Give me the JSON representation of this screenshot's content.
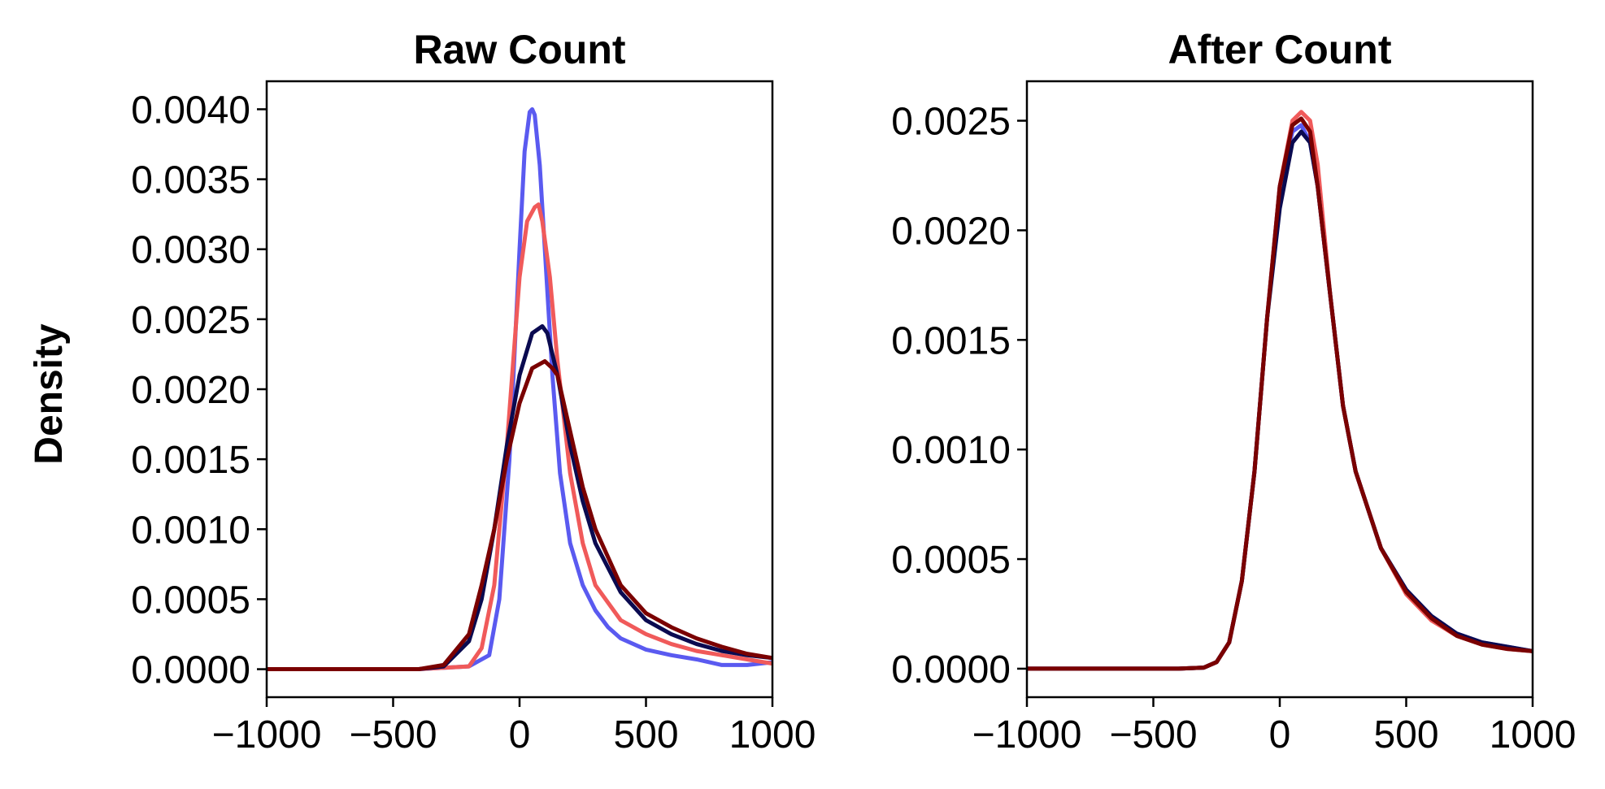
{
  "figure": {
    "ylabel": "Density"
  },
  "chart_data": [
    {
      "type": "line",
      "title": "Raw Count",
      "xlabel": "",
      "ylabel": "Density",
      "xlim": [
        -1000,
        1000
      ],
      "ylim": [
        -0.0002,
        0.0042
      ],
      "xticks": [
        -1000,
        -500,
        0,
        500,
        1000
      ],
      "xtick_labels": [
        "−1000",
        "−500",
        "0",
        "500",
        "1000"
      ],
      "yticks": [
        0,
        0.0005,
        0.001,
        0.0015,
        0.002,
        0.0025,
        0.003,
        0.0035,
        0.004
      ],
      "ytick_labels": [
        "0.0000",
        "0.0005",
        "0.0010",
        "0.0015",
        "0.0020",
        "0.0025",
        "0.0030",
        "0.0035",
        "0.0040"
      ],
      "grid": false,
      "series": [
        {
          "color": "#5a5af0",
          "x": [
            -1000,
            -400,
            -200,
            -120,
            -80,
            -40,
            0,
            20,
            40,
            50,
            60,
            80,
            100,
            130,
            160,
            200,
            250,
            300,
            350,
            400,
            500,
            600,
            700,
            800,
            900,
            1000
          ],
          "y": [
            0,
            0,
            2e-05,
            0.0001,
            0.0005,
            0.0015,
            0.003,
            0.0037,
            0.00398,
            0.004,
            0.00396,
            0.0036,
            0.003,
            0.0021,
            0.0014,
            0.0009,
            0.0006,
            0.00042,
            0.0003,
            0.00022,
            0.00014,
            0.0001,
            7e-05,
            3e-05,
            3e-05,
            5e-05
          ]
        },
        {
          "color": "#f05a5a",
          "x": [
            -1000,
            -400,
            -200,
            -150,
            -100,
            -50,
            0,
            30,
            60,
            75,
            90,
            120,
            150,
            200,
            250,
            300,
            400,
            500,
            600,
            700,
            800,
            900,
            1000
          ],
          "y": [
            0,
            0,
            2e-05,
            0.00015,
            0.0006,
            0.0016,
            0.0028,
            0.0032,
            0.0033,
            0.00332,
            0.0032,
            0.0028,
            0.0022,
            0.0014,
            0.0009,
            0.0006,
            0.00035,
            0.00025,
            0.00018,
            0.00013,
            0.0001,
            7e-05,
            4e-05
          ]
        },
        {
          "color": "#0a0a50",
          "x": [
            -1000,
            -400,
            -300,
            -200,
            -150,
            -100,
            -50,
            0,
            50,
            90,
            110,
            150,
            200,
            250,
            300,
            400,
            500,
            600,
            700,
            800,
            900,
            1000
          ],
          "y": [
            0,
            0,
            2e-05,
            0.0002,
            0.0005,
            0.001,
            0.0016,
            0.0021,
            0.0024,
            0.00245,
            0.0024,
            0.0021,
            0.0016,
            0.0012,
            0.0009,
            0.00055,
            0.00035,
            0.00025,
            0.00018,
            0.00013,
            0.0001,
            8e-05
          ]
        },
        {
          "color": "#7a0000",
          "x": [
            -1000,
            -400,
            -300,
            -200,
            -150,
            -100,
            -50,
            0,
            50,
            100,
            130,
            150,
            200,
            250,
            300,
            400,
            500,
            600,
            700,
            800,
            900,
            1000
          ],
          "y": [
            0,
            0,
            3e-05,
            0.00025,
            0.0006,
            0.001,
            0.0015,
            0.0019,
            0.00215,
            0.0022,
            0.00215,
            0.0021,
            0.0017,
            0.0013,
            0.001,
            0.0006,
            0.0004,
            0.0003,
            0.00022,
            0.00016,
            0.00011,
            8e-05
          ]
        }
      ]
    },
    {
      "type": "line",
      "title": "After Count",
      "xlabel": "",
      "ylabel": "",
      "xlim": [
        -1000,
        1000
      ],
      "ylim": [
        -0.00013,
        0.00268
      ],
      "xticks": [
        -1000,
        -500,
        0,
        500,
        1000
      ],
      "xtick_labels": [
        "−1000",
        "−500",
        "0",
        "500",
        "1000"
      ],
      "yticks": [
        0,
        0.0005,
        0.001,
        0.0015,
        0.002,
        0.0025
      ],
      "ytick_labels": [
        "0.0000",
        "0.0005",
        "0.0010",
        "0.0015",
        "0.0020",
        "0.0025"
      ],
      "grid": false,
      "series": [
        {
          "color": "#5a5af0",
          "x": [
            -1000,
            -400,
            -300,
            -250,
            -200,
            -150,
            -100,
            -50,
            0,
            50,
            85,
            120,
            150,
            200,
            250,
            300,
            400,
            500,
            600,
            700,
            800,
            900,
            1000
          ],
          "y": [
            0,
            0,
            5e-06,
            3e-05,
            0.00012,
            0.0004,
            0.0009,
            0.0016,
            0.0022,
            0.00245,
            0.00248,
            0.0024,
            0.0022,
            0.0017,
            0.0012,
            0.0009,
            0.00055,
            0.00036,
            0.00024,
            0.00016,
            0.00012,
            0.0001,
            8e-05
          ]
        },
        {
          "color": "#f05a5a",
          "x": [
            -1000,
            -400,
            -300,
            -250,
            -200,
            -150,
            -100,
            -50,
            0,
            50,
            85,
            120,
            150,
            200,
            250,
            300,
            400,
            500,
            600,
            700,
            800,
            900,
            1000
          ],
          "y": [
            0,
            0,
            5e-06,
            3e-05,
            0.00012,
            0.0004,
            0.0009,
            0.0016,
            0.0022,
            0.0025,
            0.00254,
            0.0025,
            0.0023,
            0.0017,
            0.0012,
            0.0009,
            0.00055,
            0.00034,
            0.00022,
            0.00015,
            0.00011,
            9e-05,
            8e-05
          ]
        },
        {
          "color": "#0a0a50",
          "x": [
            -1000,
            -400,
            -300,
            -250,
            -200,
            -150,
            -100,
            -50,
            0,
            50,
            85,
            120,
            150,
            200,
            250,
            300,
            400,
            500,
            600,
            700,
            800,
            900,
            1000
          ],
          "y": [
            0,
            0,
            5e-06,
            3e-05,
            0.00012,
            0.0004,
            0.0009,
            0.0016,
            0.0021,
            0.0024,
            0.00245,
            0.0024,
            0.0022,
            0.0017,
            0.0012,
            0.0009,
            0.00055,
            0.00036,
            0.00024,
            0.00016,
            0.00012,
            0.0001,
            8e-05
          ]
        },
        {
          "color": "#7a0000",
          "x": [
            -1000,
            -400,
            -300,
            -250,
            -200,
            -150,
            -100,
            -50,
            0,
            50,
            85,
            120,
            150,
            200,
            250,
            300,
            400,
            500,
            600,
            700,
            800,
            900,
            1000
          ],
          "y": [
            0,
            0,
            5e-06,
            3e-05,
            0.00012,
            0.0004,
            0.0009,
            0.0016,
            0.0022,
            0.00248,
            0.00251,
            0.00245,
            0.0022,
            0.0017,
            0.0012,
            0.0009,
            0.00055,
            0.00035,
            0.00023,
            0.00015,
            0.00011,
            9e-05,
            8e-05
          ]
        }
      ]
    }
  ]
}
